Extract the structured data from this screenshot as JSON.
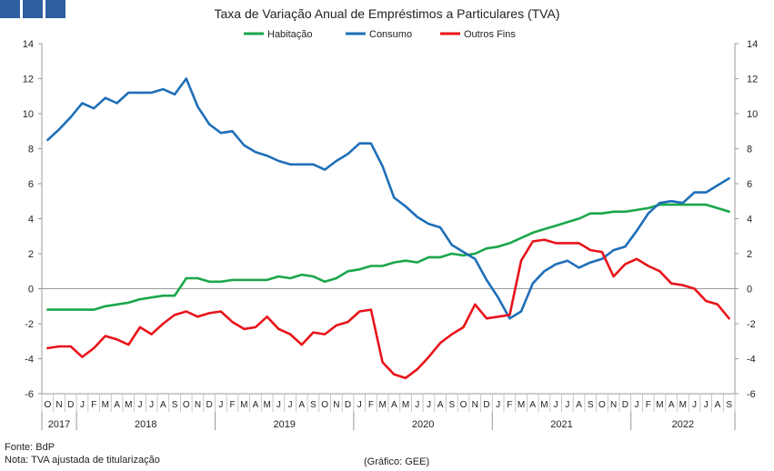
{
  "header": {
    "logo": "logo-blocks"
  },
  "footer": {
    "source": "Fonte: BdP",
    "note": "Nota: TVA ajustada de titularização",
    "credit": "(Gráfico: GEE)"
  },
  "chart_data": {
    "type": "line",
    "title": "Taxa de Variação Anual de Empréstimos a Particulares (TVA)",
    "xlabel": "",
    "ylabel": "",
    "ylim": [
      -6,
      14
    ],
    "y_ticks": [
      -6,
      -4,
      -2,
      0,
      2,
      4,
      6,
      8,
      10,
      12,
      14
    ],
    "grid": false,
    "legend_position": "top-center",
    "x": [
      "O",
      "N",
      "D",
      "J",
      "F",
      "M",
      "A",
      "M",
      "J",
      "J",
      "A",
      "S",
      "O",
      "N",
      "D",
      "J",
      "F",
      "M",
      "A",
      "M",
      "J",
      "J",
      "A",
      "S",
      "O",
      "N",
      "D",
      "J",
      "F",
      "M",
      "A",
      "M",
      "J",
      "J",
      "A",
      "S",
      "O",
      "N",
      "D",
      "J",
      "F",
      "M",
      "A",
      "M",
      "J",
      "J",
      "A",
      "S",
      "O",
      "N",
      "D",
      "J",
      "F",
      "M",
      "A",
      "M",
      "J",
      "J",
      "A",
      "S"
    ],
    "years": [
      {
        "label": "2017",
        "start": 0,
        "end": 2
      },
      {
        "label": "2018",
        "start": 3,
        "end": 14
      },
      {
        "label": "2019",
        "start": 15,
        "end": 26
      },
      {
        "label": "2020",
        "start": 27,
        "end": 38
      },
      {
        "label": "2021",
        "start": 39,
        "end": 50
      },
      {
        "label": "2022",
        "start": 51,
        "end": 59
      }
    ],
    "series": [
      {
        "name": "Habitação",
        "color": "#1aa64a",
        "values": [
          -1.2,
          -1.2,
          -1.2,
          -1.2,
          -1.2,
          -1.0,
          -0.9,
          -0.8,
          -0.6,
          -0.5,
          -0.4,
          -0.4,
          0.6,
          0.6,
          0.4,
          0.4,
          0.5,
          0.5,
          0.5,
          0.5,
          0.7,
          0.6,
          0.8,
          0.7,
          0.4,
          0.6,
          1.0,
          1.1,
          1.3,
          1.3,
          1.5,
          1.6,
          1.5,
          1.8,
          1.8,
          2.0,
          1.9,
          2.0,
          2.3,
          2.4,
          2.6,
          2.9,
          3.2,
          3.4,
          3.6,
          3.8,
          4.0,
          4.3,
          4.3,
          4.4,
          4.4,
          4.5,
          4.6,
          4.8,
          4.8,
          4.8,
          4.8,
          4.8,
          4.6,
          4.4
        ]
      },
      {
        "name": "Consumo",
        "color": "#1f6fb8",
        "values": [
          8.5,
          9.1,
          9.8,
          10.6,
          10.3,
          10.9,
          10.6,
          11.2,
          11.2,
          11.2,
          11.4,
          11.1,
          12.0,
          10.4,
          9.4,
          8.9,
          9.0,
          8.2,
          7.8,
          7.6,
          7.3,
          7.1,
          7.1,
          7.1,
          6.8,
          7.3,
          7.7,
          8.3,
          8.3,
          7.0,
          5.2,
          4.7,
          4.1,
          3.7,
          3.5,
          2.5,
          2.1,
          1.7,
          0.5,
          -0.5,
          -1.7,
          -1.3,
          0.3,
          1.0,
          1.4,
          1.6,
          1.2,
          1.5,
          1.7,
          2.2,
          2.4,
          3.3,
          4.3,
          4.9,
          5.0,
          4.9,
          5.5,
          5.5,
          5.9,
          6.3
        ]
      },
      {
        "name": "Outros Fins",
        "color": "#e8141b",
        "values": [
          -3.4,
          -3.3,
          -3.3,
          -3.9,
          -3.4,
          -2.7,
          -2.9,
          -3.2,
          -2.2,
          -2.6,
          -2.0,
          -1.5,
          -1.3,
          -1.6,
          -1.4,
          -1.3,
          -1.9,
          -2.3,
          -2.2,
          -1.6,
          -2.3,
          -2.6,
          -3.2,
          -2.5,
          -2.6,
          -2.1,
          -1.9,
          -1.3,
          -1.2,
          -4.2,
          -4.9,
          -5.1,
          -4.6,
          -3.9,
          -3.1,
          -2.6,
          -2.2,
          -0.9,
          -1.7,
          -1.6,
          -1.5,
          1.6,
          2.7,
          2.8,
          2.6,
          2.6,
          2.6,
          2.2,
          2.1,
          0.7,
          1.4,
          1.7,
          1.3,
          1.0,
          0.3,
          0.2,
          0.0,
          -0.7,
          -0.9,
          -1.7
        ]
      }
    ]
  }
}
